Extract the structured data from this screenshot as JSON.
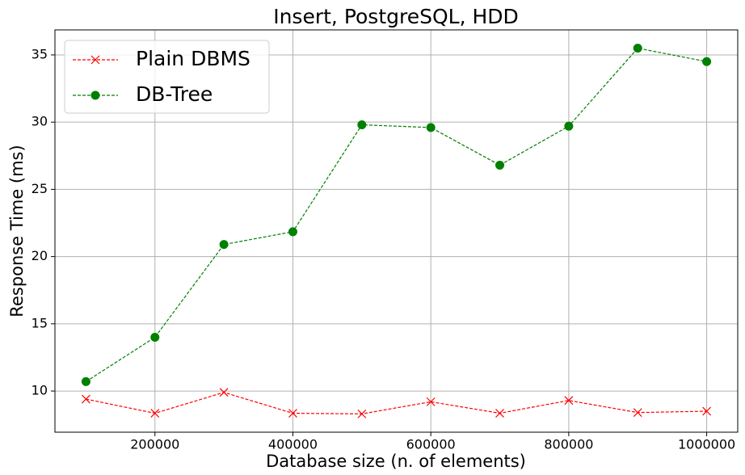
{
  "chart_data": {
    "type": "line",
    "title": "Insert, PostgreSQL, HDD",
    "xlabel": "Database size (n. of elements)",
    "ylabel": "Response Time (ms)",
    "x": [
      100000,
      200000,
      300000,
      400000,
      500000,
      600000,
      700000,
      800000,
      900000,
      1000000
    ],
    "series": [
      {
        "name": "Plain DBMS",
        "color": "#ff0000",
        "marker": "x",
        "values": [
          9.4,
          8.35,
          9.9,
          8.35,
          8.3,
          9.2,
          8.35,
          9.3,
          8.4,
          8.5
        ]
      },
      {
        "name": "DB-Tree",
        "color": "#008000",
        "marker": "o",
        "values": [
          10.7,
          14.0,
          20.9,
          21.85,
          29.8,
          29.6,
          26.8,
          29.7,
          35.5,
          34.5
        ]
      }
    ],
    "xlim": [
      55000,
      1045000
    ],
    "xticks": [
      200000,
      400000,
      600000,
      800000,
      1000000
    ],
    "ylim": [
      6.94,
      36.86
    ],
    "yticks": [
      10,
      15,
      20,
      25,
      30,
      35
    ],
    "grid": true,
    "legend": "upper-left"
  }
}
